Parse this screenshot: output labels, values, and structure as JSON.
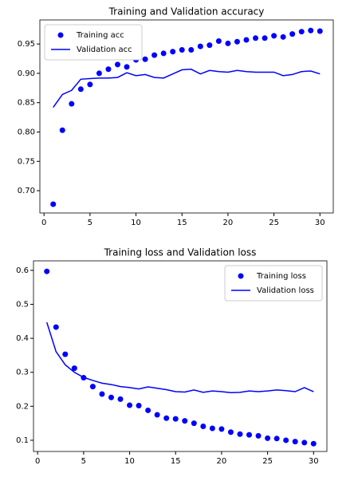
{
  "chart_data": [
    {
      "type": "line",
      "title": "Training and Validation accuracy",
      "x": [
        1,
        2,
        3,
        4,
        5,
        6,
        7,
        8,
        9,
        10,
        11,
        12,
        13,
        14,
        15,
        16,
        17,
        18,
        19,
        20,
        21,
        22,
        23,
        24,
        25,
        26,
        27,
        28,
        29,
        30
      ],
      "series": [
        {
          "name": "Training acc",
          "color": "#0000ff",
          "style": "markers",
          "values": [
            0.677,
            0.803,
            0.848,
            0.873,
            0.881,
            0.9,
            0.907,
            0.915,
            0.911,
            0.923,
            0.924,
            0.931,
            0.934,
            0.937,
            0.94,
            0.94,
            0.946,
            0.948,
            0.955,
            0.951,
            0.954,
            0.957,
            0.96,
            0.96,
            0.964,
            0.962,
            0.967,
            0.971,
            0.973,
            0.972
          ]
        },
        {
          "name": "Validation acc",
          "color": "#0000ff",
          "style": "line",
          "values": [
            0.842,
            0.864,
            0.871,
            0.89,
            0.891,
            0.892,
            0.892,
            0.893,
            0.901,
            0.896,
            0.898,
            0.893,
            0.892,
            0.899,
            0.906,
            0.907,
            0.899,
            0.905,
            0.903,
            0.902,
            0.905,
            0.903,
            0.902,
            0.902,
            0.902,
            0.896,
            0.898,
            0.903,
            0.904,
            0.899
          ]
        }
      ],
      "xlim": [
        -0.45,
        31.45
      ],
      "xticks": [
        0,
        5,
        10,
        15,
        20,
        25,
        30
      ],
      "ylim": [
        0.662,
        0.991
      ],
      "yticks": [
        {
          "value": 0.7,
          "label": "0.70"
        },
        0.75,
        {
          "value": 0.8,
          "label": "0.80"
        },
        0.85,
        {
          "value": 0.9,
          "label": "0.90"
        },
        0.95
      ],
      "legend": "upper left"
    },
    {
      "type": "line",
      "title": "Training loss and Validation loss",
      "x": [
        1,
        2,
        3,
        4,
        5,
        6,
        7,
        8,
        9,
        10,
        11,
        12,
        13,
        14,
        15,
        16,
        17,
        18,
        19,
        20,
        21,
        22,
        23,
        24,
        25,
        26,
        27,
        28,
        29,
        30
      ],
      "series": [
        {
          "name": "Training loss",
          "color": "#0000ff",
          "style": "markers",
          "values": [
            0.597,
            0.433,
            0.353,
            0.312,
            0.284,
            0.258,
            0.236,
            0.226,
            0.221,
            0.203,
            0.202,
            0.188,
            0.175,
            0.165,
            0.163,
            0.157,
            0.15,
            0.141,
            0.135,
            0.133,
            0.124,
            0.118,
            0.116,
            0.113,
            0.106,
            0.105,
            0.1,
            0.096,
            0.093,
            0.09
          ]
        },
        {
          "name": "Validation loss",
          "color": "#0000ff",
          "style": "line",
          "values": [
            0.447,
            0.361,
            0.322,
            0.3,
            0.285,
            0.276,
            0.268,
            0.264,
            0.258,
            0.255,
            0.251,
            0.257,
            0.253,
            0.249,
            0.243,
            0.242,
            0.248,
            0.241,
            0.245,
            0.243,
            0.24,
            0.241,
            0.245,
            0.243,
            0.245,
            0.248,
            0.246,
            0.243,
            0.255,
            0.243
          ]
        }
      ],
      "xlim": [
        -0.45,
        31.45
      ],
      "xticks": [
        0,
        5,
        10,
        15,
        20,
        25,
        30
      ],
      "ylim": [
        0.067,
        0.628
      ],
      "yticks": [
        0.1,
        0.2,
        0.3,
        0.4,
        0.5,
        0.6
      ],
      "legend": "upper right"
    }
  ]
}
